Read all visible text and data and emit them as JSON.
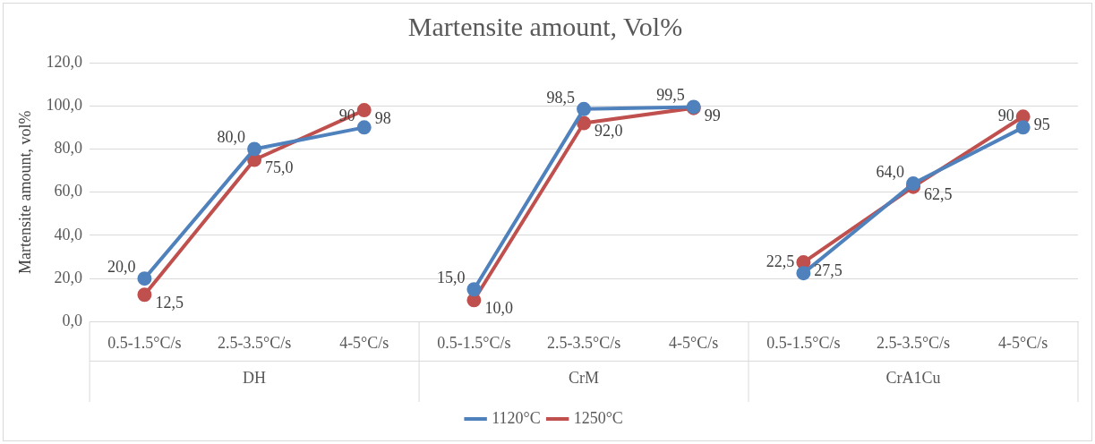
{
  "chart_data": {
    "type": "line",
    "title": "Martensite amount, Vol%",
    "ylabel": "Martensite amount, vol%",
    "categories": [
      "0.5-1.5°C/s",
      "2.5-3.5°C/s",
      "4-5°C/s",
      "0.5-1.5°C/s",
      "2.5-3.5°C/s",
      "4-5°C/s",
      "0.5-1.5°C/s",
      "2.5-3.5°C/s",
      "4-5°C/s"
    ],
    "annotations": [
      "DH",
      "CrM",
      "CrA1Cu"
    ],
    "series": [
      {
        "name": "1120°C",
        "color": "#4f81bd",
        "values": [
          20,
          80,
          90,
          15,
          98.5,
          99.5,
          22.5,
          64,
          90
        ],
        "value_labels": [
          "20,0",
          "80,0",
          "90",
          "15,0",
          "98,5",
          "99,5",
          "22,5",
          "64,0",
          "90"
        ]
      },
      {
        "name": "1250°C",
        "color": "#c0504d",
        "values": [
          12.5,
          75,
          98,
          10,
          92,
          99,
          27.5,
          62.5,
          95
        ],
        "value_labels": [
          "12,5",
          "75,0",
          "98",
          "10,0",
          "92,0",
          "99",
          "27,5",
          "62,5",
          "95"
        ]
      }
    ],
    "ylim": [
      0,
      120
    ],
    "yticks": [
      {
        "value": 0,
        "label": "0,0"
      },
      {
        "value": 20,
        "label": "20,0"
      },
      {
        "value": 40,
        "label": "40,0"
      },
      {
        "value": 60,
        "label": "60,0"
      },
      {
        "value": 80,
        "label": "80,0"
      },
      {
        "value": 100,
        "label": "100,0"
      },
      {
        "value": 120,
        "label": "120,0"
      }
    ],
    "grid": "y",
    "legend": "bottom",
    "marker": "circle",
    "line_style": "solid"
  }
}
